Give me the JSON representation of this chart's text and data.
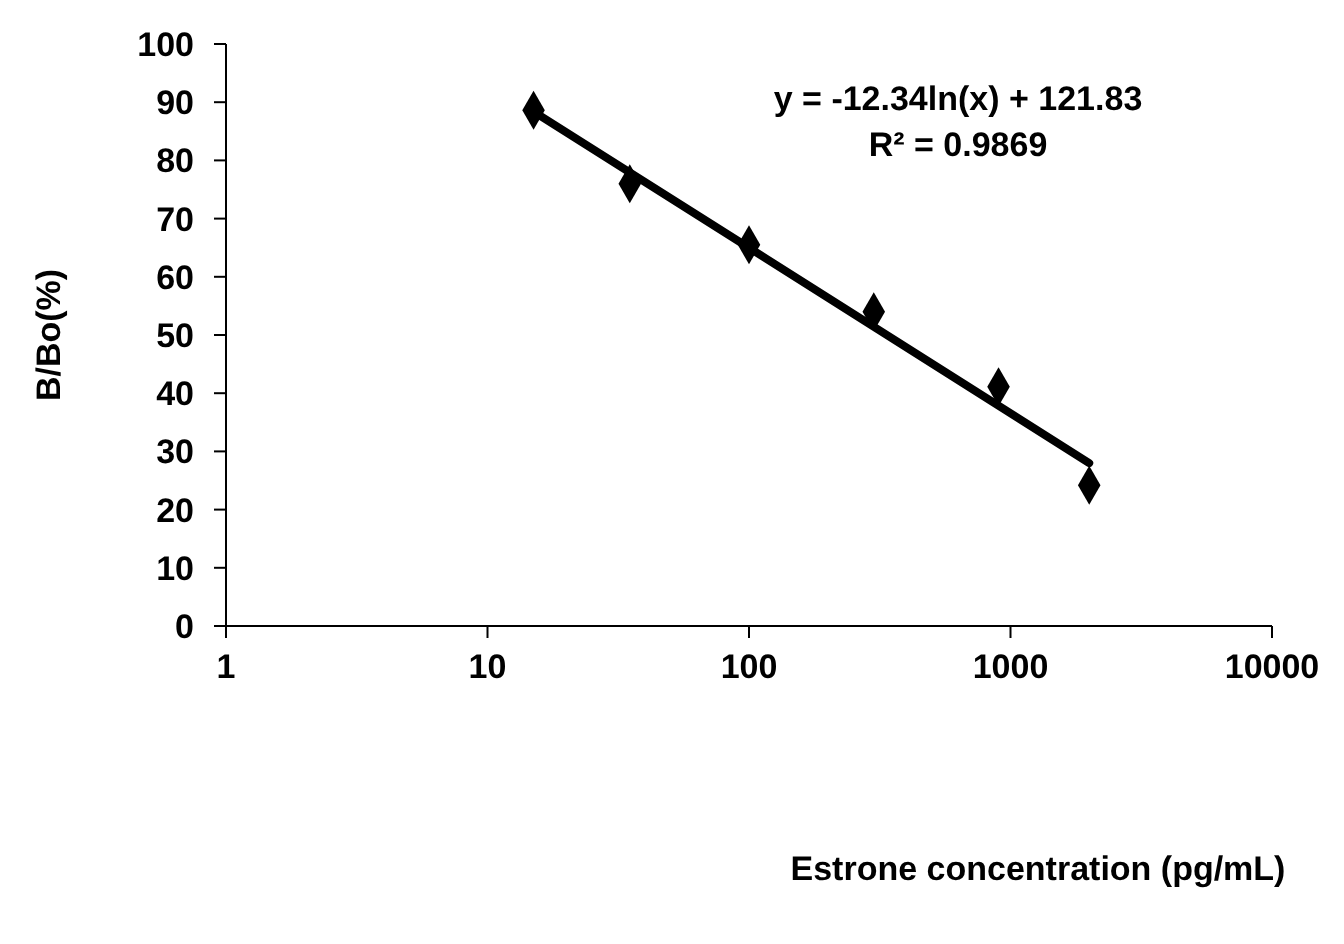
{
  "chart_data": {
    "type": "scatter",
    "xlabel": "Estrone concentration (pg/mL)",
    "ylabel": "B/Bo(%)",
    "log": "x",
    "marker": "diamond",
    "grid": false,
    "xlim": [
      1,
      10000
    ],
    "xticks": [
      1,
      10,
      100,
      1000,
      10000
    ],
    "ylim": [
      0,
      100
    ],
    "yticks": [
      0,
      10,
      20,
      30,
      40,
      50,
      60,
      70,
      80,
      90,
      100
    ],
    "series": [
      {
        "color": "#000000",
        "x": [
          15,
          35,
          100,
          300,
          900,
          2000
        ],
        "values": [
          88.6,
          76,
          65.5,
          54,
          41.1,
          24.2
        ]
      },
      {
        "type": "line",
        "color": "#000000",
        "marker": "none",
        "x": [
          15,
          2000
        ],
        "values": [
          88.4,
          28
        ]
      }
    ],
    "annotations": [
      "y = -12.34ln(x) + 121.83",
      "R² = 0.9869"
    ]
  }
}
